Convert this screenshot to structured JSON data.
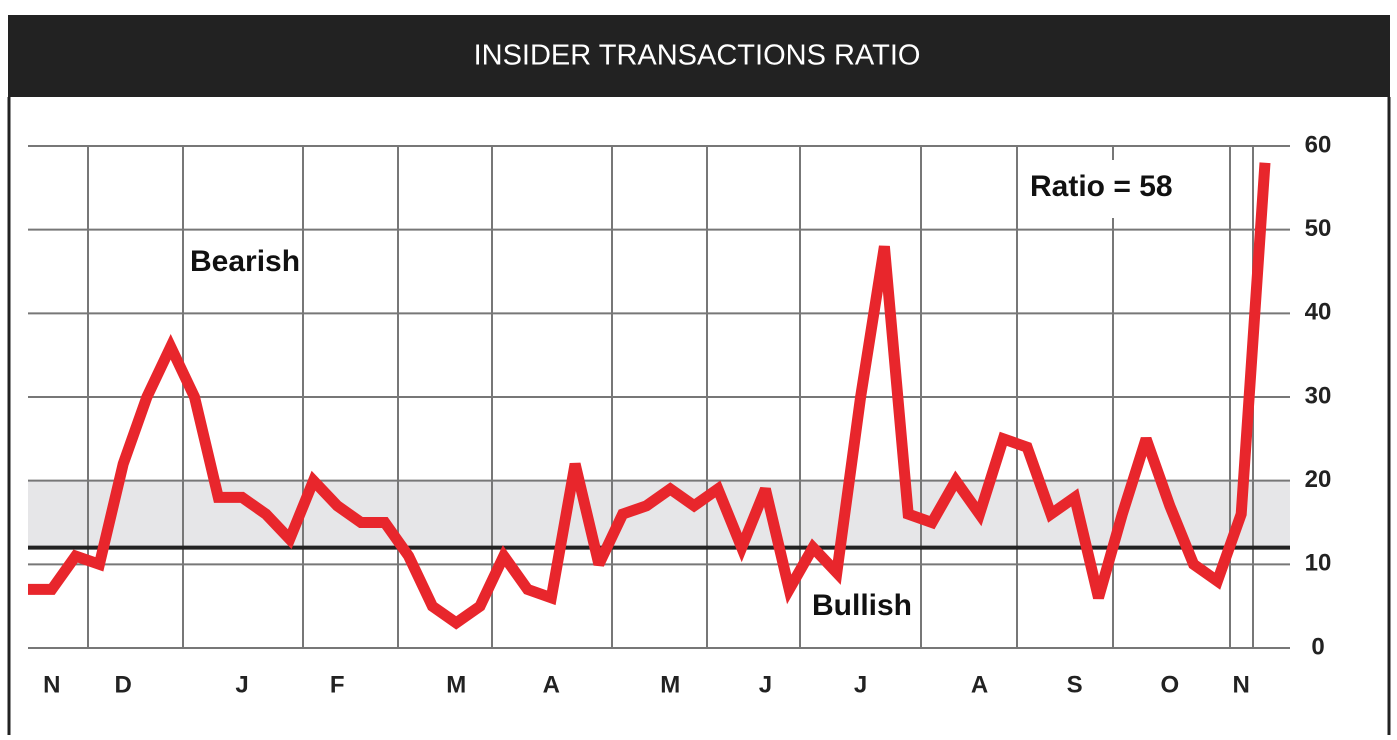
{
  "chart_data": {
    "type": "line",
    "title": "INSIDER TRANSACTIONS RATIO",
    "categories": [
      null,
      "N",
      null,
      null,
      "D",
      null,
      null,
      null,
      null,
      "J",
      null,
      null,
      null,
      "F",
      null,
      null,
      null,
      null,
      "M",
      null,
      null,
      null,
      "A",
      null,
      null,
      null,
      null,
      "M",
      null,
      null,
      null,
      "J",
      null,
      null,
      null,
      "J",
      null,
      null,
      null,
      null,
      "A",
      null,
      null,
      null,
      "S",
      null,
      null,
      null,
      "O",
      null,
      null,
      "N",
      null
    ],
    "series": [
      {
        "name": "Ratio",
        "color": "#e8262c",
        "values": [
          7,
          7,
          11,
          10,
          22,
          30,
          36,
          30,
          18,
          18,
          16,
          13,
          20,
          17,
          15,
          15,
          11,
          5,
          3,
          5,
          11,
          7,
          6,
          22,
          10,
          16,
          17,
          19,
          17,
          19,
          12,
          19,
          7,
          12,
          9,
          30,
          48,
          16,
          15,
          20,
          16,
          25,
          24,
          16,
          18,
          6,
          16,
          25,
          17,
          10,
          8,
          16,
          58
        ]
      }
    ],
    "ylim": [
      0,
      60
    ],
    "yticks": [
      0,
      10,
      20,
      30,
      40,
      50,
      60
    ],
    "grid": true,
    "reference_line": 12,
    "band": [
      12,
      20
    ],
    "annotations": [
      "Bearish",
      "Bullish",
      "Ratio = 58"
    ]
  }
}
